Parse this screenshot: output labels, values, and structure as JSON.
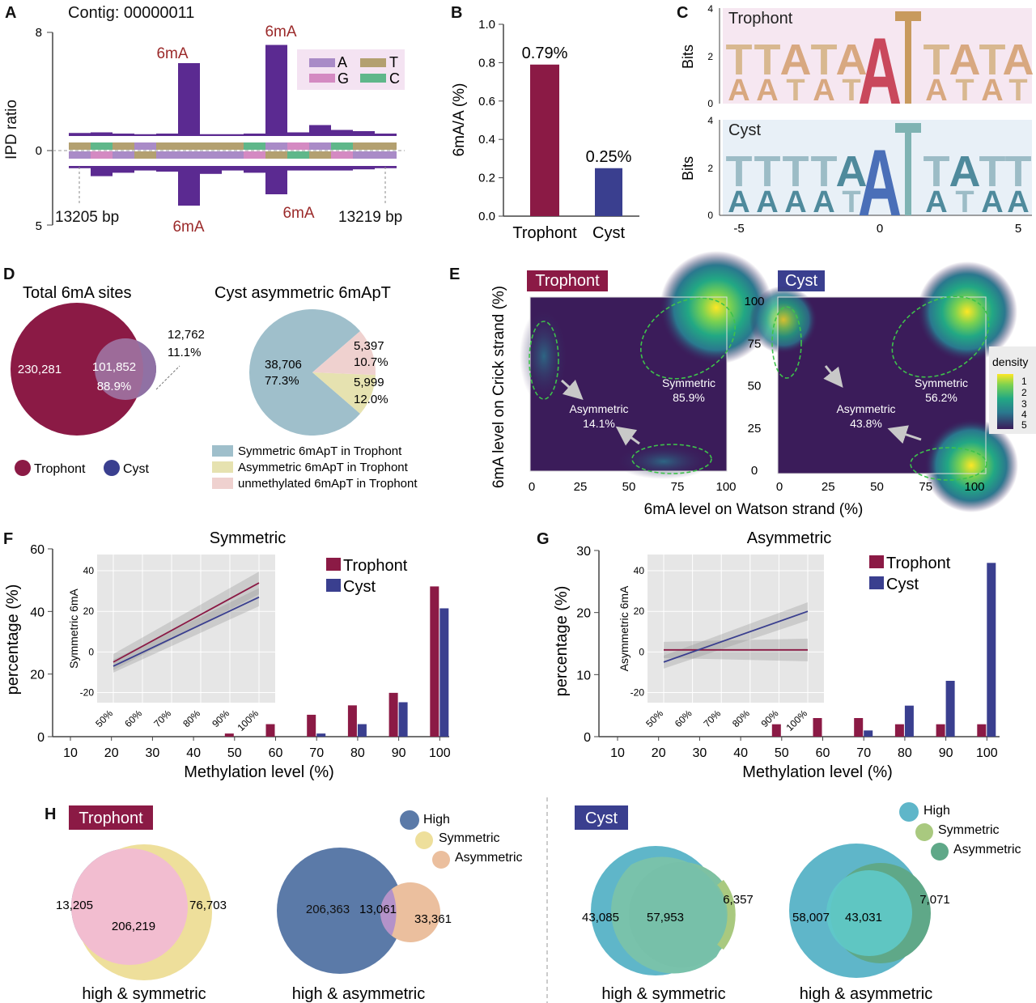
{
  "colors": {
    "trophont": "#8b1a45",
    "cyst": "#3a3f8f",
    "purple": "#5b2a91",
    "mod_label": "#9b2a2a",
    "teal_pie": "#9fbfcb",
    "yellow_pie": "#e6e2b0",
    "pink_pie": "#efd1cf",
    "venn_high": "#5b7aa8",
    "venn_sym": "#eedf9b",
    "venn_asym": "#ebbf9e",
    "venn_pink": "#f2bdd0",
    "cyst_high": "#5fb6c9",
    "cyst_sym": "#a9c97f",
    "cyst_asym": "#5fa888"
  },
  "panels": {
    "A": "A",
    "B": "B",
    "C": "C",
    "D": "D",
    "E": "E",
    "F": "F",
    "G": "G",
    "H": "H"
  },
  "panelA": {
    "title": "Contig: 00000011",
    "ylabel": "IPD ratio",
    "ytick_top": "8",
    "ytick_mid": "0",
    "ytick_bottom": "5",
    "start_label": "13205 bp",
    "end_label": "13219 bp",
    "mod_label": "6mA",
    "legend": [
      {
        "letter": "A",
        "color": "#a98bc7"
      },
      {
        "letter": "T",
        "color": "#b3a070"
      },
      {
        "letter": "G",
        "color": "#d48ac2"
      },
      {
        "letter": "C",
        "color": "#5fb78a"
      }
    ],
    "top_bars": [
      0.25,
      0.3,
      0.2,
      0.15,
      0.2,
      6.0,
      0.15,
      0.15,
      0.2,
      7.5,
      0.3,
      0.9,
      0.5,
      0.4,
      0.2
    ],
    "bottom_bars": [
      0.2,
      0.9,
      0.6,
      0.4,
      0.5,
      3.5,
      0.7,
      0.4,
      0.6,
      2.5,
      0.4,
      0.4,
      0.4,
      0.3,
      0.2
    ],
    "sequence_colors": [
      "#b3a070",
      "#5fb78a",
      "#b3a070",
      "#a98bc7",
      "#b3a070",
      "#b3a070",
      "#b3a070",
      "#b3a070",
      "#5fb78a",
      "#a98bc7",
      "#d48ac2",
      "#a98bc7",
      "#5fb78a",
      "#b3a070",
      "#b3a070"
    ],
    "complement_colors": [
      "#a98bc7",
      "#d48ac2",
      "#a98bc7",
      "#b3a070",
      "#a98bc7",
      "#a98bc7",
      "#a98bc7",
      "#a98bc7",
      "#d48ac2",
      "#b3a070",
      "#5fb78a",
      "#b3a070",
      "#d48ac2",
      "#a98bc7",
      "#a98bc7"
    ]
  },
  "chart_data": [
    {
      "type": "bar",
      "panel": "B",
      "categories": [
        "Trophont",
        "Cyst"
      ],
      "values": [
        0.79,
        0.25
      ],
      "value_labels": [
        "0.79%",
        "0.25%"
      ],
      "ylabel": "6mA/A (%)",
      "ylim": [
        0,
        1.0
      ],
      "yticks": [
        "0.0",
        "0.2",
        "0.4",
        "0.6",
        "0.8",
        "1.0"
      ]
    },
    {
      "type": "bar",
      "panel": "F",
      "title": "Symmetric",
      "categories": [
        "10",
        "20",
        "30",
        "40",
        "50",
        "60",
        "70",
        "80",
        "90",
        "100"
      ],
      "series": [
        {
          "name": "Trophont",
          "values": [
            0,
            0,
            0,
            0,
            1,
            4,
            7,
            10,
            14,
            48
          ]
        },
        {
          "name": "Cyst",
          "values": [
            0,
            0,
            0,
            0,
            0,
            0,
            1,
            4,
            11,
            41
          ]
        }
      ],
      "xlabel": "Methylation level (%)",
      "ylabel": "percentage (%)",
      "ylim": [
        0,
        60
      ],
      "yticks": [
        "0",
        "20",
        "40",
        "60"
      ],
      "inset": {
        "ylabel": "Symmetric 6mA",
        "xticks": [
          "50%",
          "60%",
          "70%",
          "80%",
          "90%",
          "100%"
        ],
        "yticks": [
          "-20",
          "0",
          "20",
          "40"
        ],
        "ylim": [
          -25,
          48
        ],
        "lines": [
          {
            "name": "Trophont",
            "from": -5,
            "to": 34
          },
          {
            "name": "Cyst",
            "from": -7,
            "to": 27
          }
        ]
      }
    },
    {
      "type": "bar",
      "panel": "G",
      "title": "Asymmetric",
      "categories": [
        "10",
        "20",
        "30",
        "40",
        "50",
        "60",
        "70",
        "80",
        "90",
        "100"
      ],
      "series": [
        {
          "name": "Trophont",
          "values": [
            0,
            0,
            0,
            0,
            2,
            3,
            3,
            2,
            2,
            2
          ]
        },
        {
          "name": "Cyst",
          "values": [
            0,
            0,
            0,
            0,
            0,
            0,
            1,
            5,
            9,
            28
          ]
        }
      ],
      "xlabel": "Methylation level (%)",
      "ylabel": "percentage (%)",
      "ylim": [
        0,
        30
      ],
      "yticks": [
        "0",
        "10",
        "20",
        "30"
      ],
      "inset": {
        "ylabel": "Asymmetric 6mA",
        "xticks": [
          "50%",
          "60%",
          "70%",
          "80%",
          "90%",
          "100%"
        ],
        "yticks": [
          "-20",
          "0",
          "20",
          "40"
        ],
        "ylim": [
          -25,
          48
        ],
        "lines": [
          {
            "name": "Trophont",
            "from": 1,
            "to": 1
          },
          {
            "name": "Cyst",
            "from": -5,
            "to": 20
          }
        ]
      }
    },
    {
      "type": "pie",
      "panel": "D",
      "title": "Cyst asymmetric 6mApT",
      "slices": [
        {
          "name": "Symmetric 6mApT in Trophont",
          "value": 77.3,
          "count": "38,706",
          "pct": "77.3%"
        },
        {
          "name": "Asymmetric 6mApT in Trophont",
          "value": 10.7,
          "count": "5,397",
          "pct": "10.7%"
        },
        {
          "name": "unmethylated 6mApT in Trophont",
          "value": 12.0,
          "count": "5,999",
          "pct": "12.0%"
        }
      ]
    },
    {
      "type": "heatmap",
      "panel": "E",
      "xlabel": "6mA level on Watson strand (%)",
      "ylabel": "6mA level on Crick strand (%)",
      "ticks": [
        "0",
        "25",
        "50",
        "75",
        "100"
      ],
      "legend_title": "density",
      "legend_values": [
        "1",
        "2",
        "3",
        "4",
        "5"
      ],
      "maps": [
        {
          "name": "Trophont",
          "symmetric": "85.9%",
          "asymmetric": "14.1%"
        },
        {
          "name": "Cyst",
          "symmetric": "56.2%",
          "asymmetric": "43.8%"
        }
      ]
    }
  ],
  "panelC": {
    "ylabel": "Bits",
    "yticks": [
      "0",
      "2",
      "4"
    ],
    "xticks": [
      "-5",
      "0",
      "5"
    ],
    "trophont_label": "Trophont",
    "cyst_label": "Cyst",
    "trophont_top": [
      "T",
      "T",
      "A",
      "T",
      "A",
      "A",
      "T",
      "T",
      "A",
      "T",
      "A"
    ],
    "trophont_bottom": [
      "A",
      "A",
      "T",
      "A",
      "T",
      "A",
      "T",
      "A",
      "T",
      "A",
      "T"
    ],
    "cyst_top": [
      "T",
      "T",
      "T",
      "T",
      "A",
      "A",
      "T",
      "T",
      "A",
      "T",
      "T"
    ],
    "cyst_bottom": [
      "A",
      "A",
      "A",
      "A",
      "T",
      "A",
      "T",
      "A",
      "T",
      "A",
      "A"
    ]
  },
  "panelD": {
    "venn_title": "Total 6mA sites",
    "trophont_only": "230,281",
    "overlap": "101,852",
    "overlap_pct": "88.9%",
    "cyst_only": "12,762",
    "cyst_only_pct": "11.1%",
    "legend_trophont": "Trophont",
    "legend_cyst": "Cyst",
    "pie_label_main": "38,706",
    "pie_label_main_pct": "77.3%",
    "pie_label_yellow": "5,397",
    "pie_label_yellow_pct": "10.7%",
    "pie_label_pink": "5,999",
    "pie_label_pink_pct": "12.0%"
  },
  "panelE": {
    "trophont_tag": "Trophont",
    "cyst_tag": "Cyst",
    "symmetric": "Symmetric",
    "asymmetric": "Asymmetric"
  },
  "panelF": {
    "legend_trophont": "Trophont",
    "legend_cyst": "Cyst"
  },
  "panelH": {
    "trophont_tag": "Trophont",
    "cyst_tag": "Cyst",
    "legend_high": "High",
    "legend_sym": "Symmetric",
    "legend_asym": "Asymmetric",
    "caption_sym": "high & symmetric",
    "caption_asym": "high & asymmetric",
    "t_sym_high_only": "13,205",
    "t_sym_overlap": "206,219",
    "t_sym_only": "76,703",
    "t_asym_high_only": "206,363",
    "t_asym_overlap": "13,061",
    "t_asym_only": "33,361",
    "c_sym_high_only": "43,085",
    "c_sym_overlap": "57,953",
    "c_sym_only": "6,357",
    "c_asym_high_only": "58,007",
    "c_asym_overlap": "43,031",
    "c_asym_only": "7,071"
  }
}
